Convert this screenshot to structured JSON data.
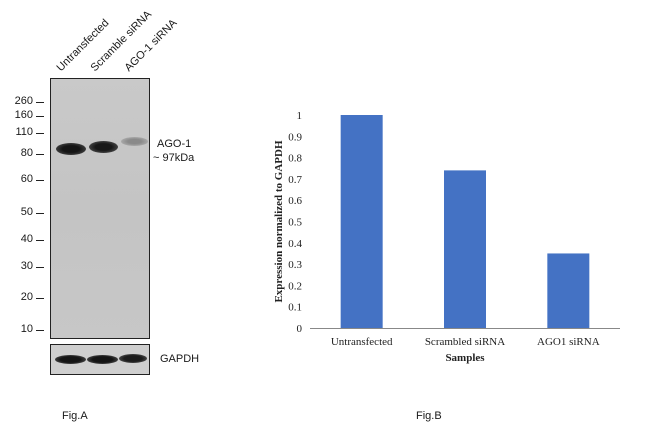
{
  "blot": {
    "lanes": [
      "Untransfected",
      "Scramble siRNA",
      "AGO-1 siRNA"
    ],
    "markers": [
      "260",
      "160",
      "110",
      "80",
      "60",
      "50",
      "40",
      "30",
      "20",
      "10"
    ],
    "target_label": "AGO-1",
    "target_size": "~ 97kDa",
    "loading_control": "GAPDH",
    "band_intensity": [
      1.0,
      0.9,
      0.45
    ],
    "fig_label": "Fig.A"
  },
  "chart_data": {
    "type": "bar",
    "categories": [
      "Untransfected",
      "Scrambled siRNA",
      "AGO1 siRNA"
    ],
    "values": [
      1.0,
      0.74,
      0.35
    ],
    "title": "",
    "xlabel": "Samples",
    "ylabel": "Expression normalized to GAPDH",
    "ylim": [
      0,
      1
    ],
    "yticks": [
      "0",
      "0.1",
      "0.2",
      "0.3",
      "0.4",
      "0.5",
      "0.6",
      "0.7",
      "0.8",
      "0.9",
      "1"
    ],
    "bar_color": "#4472c4",
    "grid": false,
    "legend": "none",
    "fig_label": "Fig.B"
  }
}
